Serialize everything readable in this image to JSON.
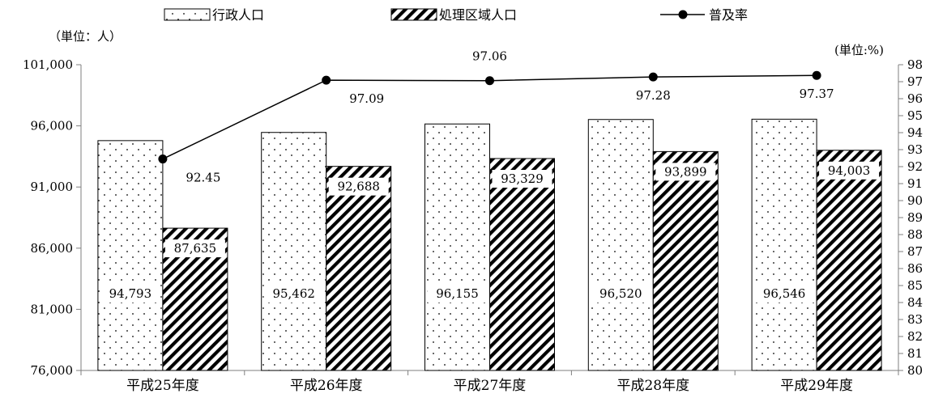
{
  "chart_data": {
    "type": "bar",
    "categories": [
      "平成25年度",
      "平成26年度",
      "平成27年度",
      "平成28年度",
      "平成29年度"
    ],
    "series": [
      {
        "name": "行政人口",
        "kind": "bar",
        "axis": "left",
        "pattern": "dots",
        "values": [
          94793,
          95462,
          96155,
          96520,
          96546
        ],
        "labels": [
          "94,793",
          "95,462",
          "96,155",
          "96,520",
          "96,546"
        ]
      },
      {
        "name": "処理区域人口",
        "kind": "bar",
        "axis": "left",
        "pattern": "diagonal-stripes",
        "values": [
          87635,
          92688,
          93329,
          93899,
          94003
        ],
        "labels": [
          "87,635",
          "92,688",
          "93,329",
          "93,899",
          "94,003"
        ]
      },
      {
        "name": "普及率",
        "kind": "line",
        "axis": "right",
        "marker": "filled-circle",
        "values": [
          92.45,
          97.09,
          97.06,
          97.28,
          97.37
        ],
        "labels": [
          "92.45",
          "97.09",
          "97.06",
          "97.28",
          "97.37"
        ]
      }
    ],
    "left_axis": {
      "unit_label": "（単位：人）",
      "ylim": [
        76000,
        101000
      ],
      "ticks": [
        76000,
        81000,
        86000,
        91000,
        96000,
        101000
      ],
      "tick_labels": [
        "76,000",
        "81,000",
        "86,000",
        "91,000",
        "96,000",
        "101,000"
      ]
    },
    "right_axis": {
      "unit_label": "(単位:%)",
      "ylim": [
        80,
        98
      ],
      "ticks": [
        80,
        81,
        82,
        83,
        84,
        85,
        86,
        87,
        88,
        89,
        90,
        91,
        92,
        93,
        94,
        95,
        96,
        97,
        98
      ]
    },
    "legend_position": "top",
    "grid": false,
    "colors": {
      "bar_fill": "#ffffff",
      "pattern_ink": "#000000",
      "line": "#000000",
      "axis": "#7f7f7f"
    }
  }
}
